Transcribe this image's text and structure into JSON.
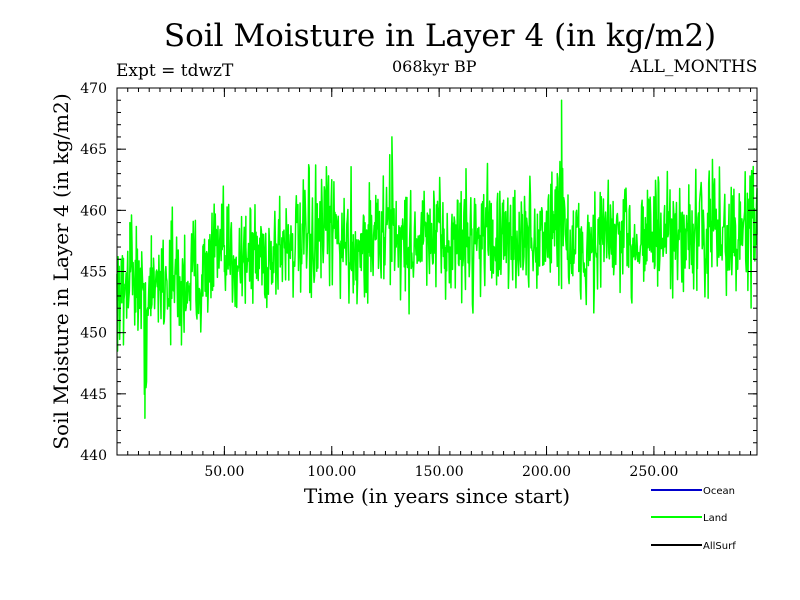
{
  "header": {
    "title": "Soil Moisture in Layer 4 (in kg/m2)",
    "experiment": "Expt = tdwzT",
    "subtitle": "068kyr BP",
    "months": "ALL_MONTHS"
  },
  "chart_data": {
    "type": "line",
    "title": "Soil Moisture in Layer 4 (in kg/m2)",
    "xlabel": "Time (in years since start)",
    "ylabel": "Soil Moisture in Layer 4 (in kg/m2)",
    "xlim": [
      0,
      298
    ],
    "ylim": [
      440,
      470
    ],
    "x_ticks": [
      50,
      100,
      150,
      200,
      250
    ],
    "x_tick_labels": [
      "50.00",
      "100.00",
      "150.00",
      "200.00",
      "250.00"
    ],
    "y_ticks": [
      440,
      445,
      450,
      455,
      460,
      465,
      470
    ],
    "y_tick_labels": [
      "440",
      "445",
      "450",
      "455",
      "460",
      "465",
      "470"
    ],
    "grid": false,
    "legend_position": "bottom-right",
    "series": [
      {
        "name": "Ocean",
        "color": "#0000cc",
        "values": []
      },
      {
        "name": "Land",
        "color": "#00ff00",
        "x": [
          0,
          3,
          6,
          10,
          13,
          16,
          20,
          25,
          30,
          35,
          40,
          45,
          50,
          55,
          60,
          65,
          70,
          75,
          80,
          85,
          90,
          95,
          100,
          105,
          110,
          115,
          120,
          125,
          128,
          130,
          135,
          140,
          145,
          150,
          155,
          160,
          165,
          170,
          175,
          180,
          185,
          190,
          195,
          200,
          205,
          207,
          210,
          215,
          220,
          225,
          230,
          235,
          240,
          245,
          250,
          255,
          260,
          265,
          270,
          275,
          280,
          285,
          290,
          295,
          298
        ],
        "values": [
          454,
          449,
          459,
          454,
          443,
          452,
          455,
          451,
          449,
          455,
          453,
          458,
          455,
          456,
          457,
          456,
          455,
          457,
          458,
          457,
          456,
          458,
          459,
          457,
          458,
          455,
          459,
          458,
          466,
          457,
          456,
          457,
          458,
          459,
          457,
          456,
          458,
          460,
          457,
          456,
          458,
          457,
          456,
          458,
          463,
          469,
          457,
          455,
          456,
          457,
          458,
          457,
          456,
          459,
          458,
          457,
          456,
          458,
          457,
          459,
          458,
          457,
          456,
          459,
          458
        ],
        "range_low": [
          449,
          447,
          451,
          448,
          443,
          448,
          449,
          448,
          447,
          449,
          449,
          451,
          450,
          450,
          451,
          451,
          450,
          451,
          452,
          451,
          451,
          452,
          451,
          452,
          450,
          451,
          452,
          452,
          452,
          452,
          451,
          452,
          451,
          452,
          451,
          452,
          451,
          452,
          452,
          451,
          452,
          451,
          452,
          452,
          452,
          452,
          451,
          449,
          451,
          451,
          452,
          451,
          451,
          452,
          452,
          451,
          451,
          452,
          451,
          452,
          452,
          451,
          452,
          452,
          452
        ],
        "range_high": [
          458,
          459,
          461,
          460,
          458,
          459,
          460,
          461,
          460,
          461,
          460,
          462,
          462,
          462,
          462,
          462,
          462,
          463,
          463,
          463,
          464,
          464,
          466,
          463,
          464,
          463,
          464,
          464,
          467,
          464,
          463,
          463,
          464,
          463,
          463,
          464,
          464,
          465,
          464,
          463,
          464,
          464,
          463,
          464,
          466,
          469,
          464,
          463,
          463,
          464,
          464,
          463,
          464,
          465,
          464,
          464,
          463,
          465,
          464,
          465,
          465,
          464,
          464,
          465,
          466
        ]
      },
      {
        "name": "AllSurf",
        "color": "#000000",
        "values": []
      }
    ]
  }
}
